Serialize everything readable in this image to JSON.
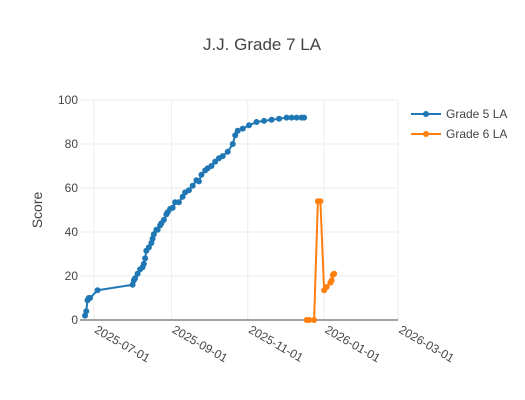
{
  "chart_data": {
    "type": "line",
    "title": "J.J. Grade 7 LA",
    "xlabel": "",
    "ylabel": "Score",
    "x_type": "date",
    "xlim": [
      "2025-06-20",
      "2026-03-01"
    ],
    "ylim": [
      0,
      100
    ],
    "x_ticks": [
      "2025-07-01",
      "2025-09-01",
      "2025-11-01",
      "2026-01-01",
      "2026-03-01"
    ],
    "y_ticks": [
      0,
      20,
      40,
      60,
      80,
      100
    ],
    "grid": true,
    "legend_position": "top-right",
    "series": [
      {
        "name": "Grade 5 LA",
        "color": "#1f77b4",
        "x": [
          "2025-06-24",
          "2025-06-25",
          "2025-06-26",
          "2025-06-27",
          "2025-06-28",
          "2025-07-04",
          "2025-08-01",
          "2025-08-02",
          "2025-08-03",
          "2025-08-05",
          "2025-08-07",
          "2025-08-09",
          "2025-08-10",
          "2025-08-11",
          "2025-08-12",
          "2025-08-14",
          "2025-08-16",
          "2025-08-17",
          "2025-08-18",
          "2025-08-20",
          "2025-08-21",
          "2025-08-23",
          "2025-08-24",
          "2025-08-26",
          "2025-08-28",
          "2025-08-29",
          "2025-08-31",
          "2025-09-02",
          "2025-09-04",
          "2025-09-07",
          "2025-09-10",
          "2025-09-12",
          "2025-09-15",
          "2025-09-18",
          "2025-09-21",
          "2025-09-23",
          "2025-09-25",
          "2025-09-28",
          "2025-09-30",
          "2025-10-03",
          "2025-10-06",
          "2025-10-09",
          "2025-10-12",
          "2025-10-16",
          "2025-10-20",
          "2025-10-22",
          "2025-10-24",
          "2025-10-28",
          "2025-11-02",
          "2025-11-08",
          "2025-11-14",
          "2025-11-20",
          "2025-11-26",
          "2025-12-02",
          "2025-12-06",
          "2025-12-10",
          "2025-12-14",
          "2025-12-16"
        ],
        "values": [
          2,
          4,
          9,
          10,
          10,
          13.5,
          16,
          18,
          19,
          21,
          23,
          24,
          25.5,
          28,
          31.5,
          33,
          35,
          37,
          39,
          41,
          41,
          43,
          44,
          45.5,
          48,
          49,
          50.5,
          51,
          53.5,
          53.5,
          56,
          58,
          59,
          61,
          63.5,
          63,
          66,
          68,
          69,
          70,
          72,
          73.5,
          74.5,
          76.5,
          80,
          84,
          86,
          87,
          88.5,
          90,
          90.5,
          91,
          91.5,
          92,
          92,
          92,
          92,
          92
        ]
      },
      {
        "name": "Grade 6 LA",
        "color": "#ff7f0e",
        "x": [
          "2025-12-18",
          "2025-12-20",
          "2025-12-24",
          "2025-12-27",
          "2025-12-29",
          "2026-01-01",
          "2026-01-03",
          "2026-01-06",
          "2026-01-07",
          "2026-01-08",
          "2026-01-09"
        ],
        "values": [
          0,
          0,
          0,
          54,
          54,
          13.5,
          15,
          17,
          18,
          20.5,
          21
        ]
      }
    ]
  }
}
